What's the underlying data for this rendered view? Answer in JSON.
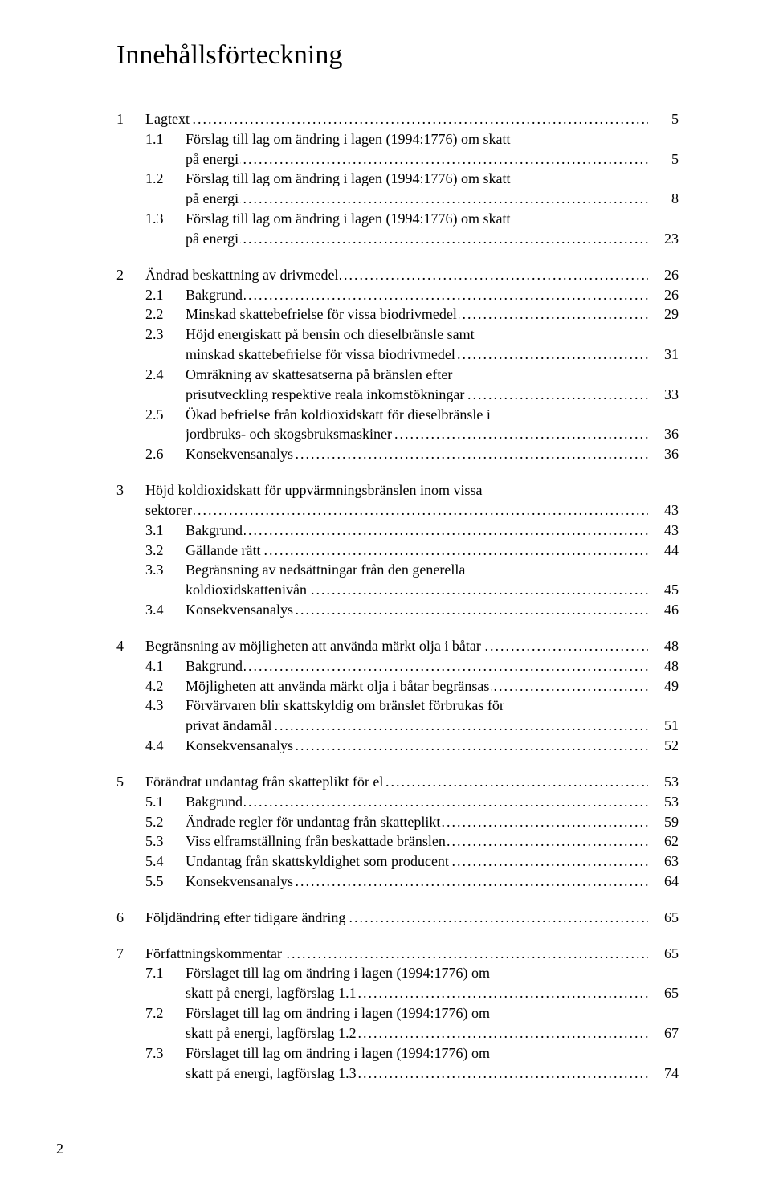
{
  "title": "Innehållsförteckning",
  "page_number": "2",
  "toc": [
    {
      "num": "1",
      "label": "Lagtext",
      "page": "5",
      "children": [
        {
          "num": "1.1",
          "label": "Förslag till lag om ändring i lagen (1994:1776) om skatt på energi",
          "page": "5"
        },
        {
          "num": "1.2",
          "label": "Förslag till lag om ändring i lagen (1994:1776) om skatt på energi",
          "page": "8"
        },
        {
          "num": "1.3",
          "label": "Förslag till lag om ändring i lagen (1994:1776) om skatt på energi",
          "page": "23"
        }
      ]
    },
    {
      "num": "2",
      "label": "Ändrad beskattning av drivmedel",
      "page": "26",
      "children": [
        {
          "num": "2.1",
          "label": "Bakgrund",
          "page": "26"
        },
        {
          "num": "2.2",
          "label": "Minskad skattebefrielse för vissa biodrivmedel",
          "page": "29"
        },
        {
          "num": "2.3",
          "label": "Höjd energiskatt på bensin och dieselbränsle samt minskad skattebefrielse för vissa biodrivmedel",
          "page": "31"
        },
        {
          "num": "2.4",
          "label": "Omräkning av skattesatserna på bränslen efter prisutveckling respektive reala inkomstökningar",
          "page": "33"
        },
        {
          "num": "2.5",
          "label": "Ökad befrielse från koldioxidskatt för dieselbränsle i jordbruks- och skogsbruksmaskiner",
          "page": "36"
        },
        {
          "num": "2.6",
          "label": "Konsekvensanalys",
          "page": "36"
        }
      ]
    },
    {
      "num": "3",
      "label": "Höjd koldioxidskatt för uppvärmningsbränslen inom vissa sektorer",
      "page": "43",
      "children": [
        {
          "num": "3.1",
          "label": "Bakgrund",
          "page": "43"
        },
        {
          "num": "3.2",
          "label": "Gällande rätt",
          "page": "44"
        },
        {
          "num": "3.3",
          "label": "Begränsning av nedsättningar från den generella koldioxidskattenivån",
          "page": "45"
        },
        {
          "num": "3.4",
          "label": "Konsekvensanalys",
          "page": "46"
        }
      ]
    },
    {
      "num": "4",
      "label": "Begränsning av möjligheten att använda märkt olja i båtar",
      "page": "48",
      "children": [
        {
          "num": "4.1",
          "label": "Bakgrund",
          "page": "48"
        },
        {
          "num": "4.2",
          "label": "Möjligheten att använda märkt olja i båtar begränsas",
          "page": "49"
        },
        {
          "num": "4.3",
          "label": "Förvärvaren blir skattskyldig om bränslet förbrukas för privat ändamål",
          "page": "51"
        },
        {
          "num": "4.4",
          "label": "Konsekvensanalys",
          "page": "52"
        }
      ]
    },
    {
      "num": "5",
      "label": "Förändrat undantag från skatteplikt för el",
      "page": "53",
      "children": [
        {
          "num": "5.1",
          "label": "Bakgrund",
          "page": "53"
        },
        {
          "num": "5.2",
          "label": "Ändrade regler för undantag från skatteplikt",
          "page": "59"
        },
        {
          "num": "5.3",
          "label": "Viss elframställning från beskattade bränslen",
          "page": "62"
        },
        {
          "num": "5.4",
          "label": "Undantag från skattskyldighet som producent",
          "page": "63"
        },
        {
          "num": "5.5",
          "label": "Konsekvensanalys",
          "page": "64"
        }
      ]
    },
    {
      "num": "6",
      "label": "Följdändring efter tidigare ändring",
      "page": "65",
      "children": []
    },
    {
      "num": "7",
      "label": "Författningskommentar",
      "page": "65",
      "children": [
        {
          "num": "7.1",
          "label": "Förslaget till lag om ändring i lagen (1994:1776) om skatt på energi, lagförslag 1.1",
          "page": "65"
        },
        {
          "num": "7.2",
          "label": "Förslaget till lag om ändring i lagen (1994:1776) om skatt på energi, lagförslag 1.2",
          "page": "67"
        },
        {
          "num": "7.3",
          "label": "Förslaget till lag om ändring i lagen (1994:1776) om skatt på energi, lagförslag 1.3",
          "page": "74"
        }
      ]
    }
  ]
}
